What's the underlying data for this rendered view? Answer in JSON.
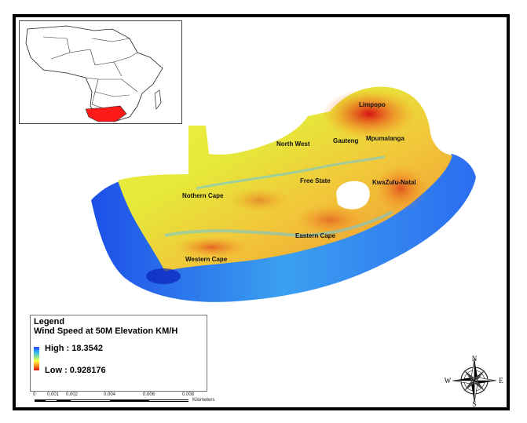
{
  "map": {
    "provinces": [
      {
        "name": "Limpopo"
      },
      {
        "name": "Mpumalanga"
      },
      {
        "name": "Gauteng"
      },
      {
        "name": "North West"
      },
      {
        "name": "Free State"
      },
      {
        "name": "KwaZulu-Natal"
      },
      {
        "name": "Nothern Cape"
      },
      {
        "name": "Eastern Cape"
      },
      {
        "name": "Western Cape"
      }
    ]
  },
  "legend": {
    "title": "Legend",
    "subtitle": "Wind Speed at 50M Elevation KM/H",
    "high": "High : 18.3542",
    "low": "Low : 0.928176",
    "high_color": "#2a3cff",
    "low_color": "#d81010"
  },
  "scale": {
    "ticks": [
      "0",
      "0.001",
      "0.002",
      "0.004",
      "0.006",
      "0.008"
    ],
    "unit": "Kilometers"
  },
  "compass": {
    "n": "N",
    "s": "S",
    "e": "E",
    "w": "W"
  },
  "inset": {
    "highlight_color": "#ff1a1a"
  }
}
